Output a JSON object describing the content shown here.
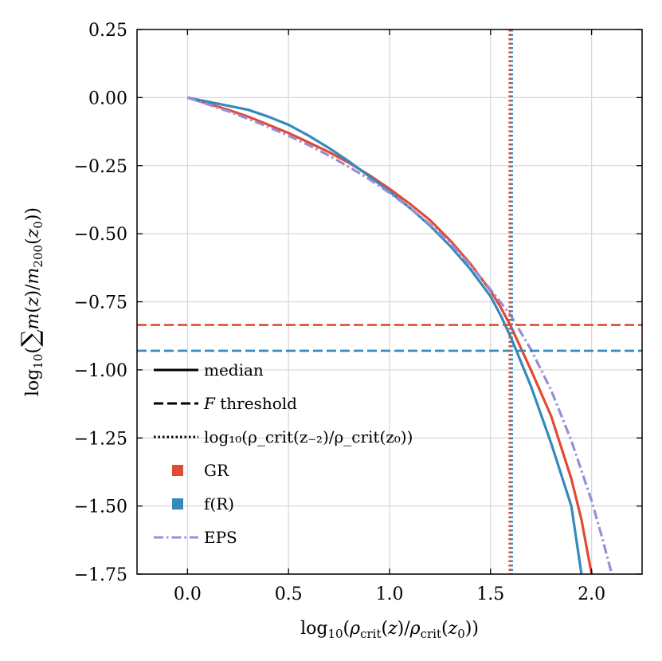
{
  "chart_data": {
    "type": "line",
    "xlabel": "log₁₀(ρ_crit(z)/ρ_crit(z₀))",
    "ylabel": "log₁₀(∑m(z)/m₂₀₀(z₀))",
    "xlim": [
      -0.25,
      2.25
    ],
    "ylim": [
      -1.75,
      0.25
    ],
    "xticks": [
      0.0,
      0.5,
      1.0,
      1.5,
      2.0
    ],
    "xtick_labels": [
      "0.0",
      "0.5",
      "1.0",
      "1.5",
      "2.0"
    ],
    "yticks": [
      0.25,
      0.0,
      -0.25,
      -0.5,
      -0.75,
      -1.0,
      -1.25,
      -1.5,
      -1.75
    ],
    "ytick_labels": [
      "0.25",
      "0.00",
      "−0.25",
      "−0.50",
      "−0.75",
      "−1.00",
      "−1.25",
      "−1.50",
      "−1.75"
    ],
    "grid": true,
    "legend_position": "lower-left",
    "colors": {
      "GR": "#e24a33",
      "fR": "#348abd",
      "EPS": "#988ed5"
    },
    "series": [
      {
        "name": "GR",
        "style": "solid",
        "x": [
          0.0,
          0.1,
          0.2,
          0.3,
          0.4,
          0.5,
          0.6,
          0.7,
          0.8,
          0.9,
          1.0,
          1.1,
          1.2,
          1.3,
          1.4,
          1.5,
          1.55,
          1.6,
          1.7,
          1.8,
          1.9,
          1.95,
          2.0
        ],
        "y": [
          0.0,
          -0.022,
          -0.045,
          -0.07,
          -0.1,
          -0.13,
          -0.165,
          -0.2,
          -0.24,
          -0.285,
          -0.335,
          -0.39,
          -0.45,
          -0.525,
          -0.61,
          -0.71,
          -0.77,
          -0.84,
          -1.0,
          -1.17,
          -1.4,
          -1.55,
          -1.75
        ]
      },
      {
        "name": "f(R)",
        "style": "solid",
        "x": [
          0.0,
          0.1,
          0.2,
          0.3,
          0.4,
          0.5,
          0.6,
          0.7,
          0.8,
          0.9,
          1.0,
          1.1,
          1.2,
          1.3,
          1.4,
          1.5,
          1.55,
          1.6,
          1.7,
          1.8,
          1.9,
          1.95
        ],
        "y": [
          0.0,
          -0.015,
          -0.03,
          -0.045,
          -0.07,
          -0.1,
          -0.14,
          -0.185,
          -0.235,
          -0.29,
          -0.345,
          -0.405,
          -0.47,
          -0.545,
          -0.63,
          -0.73,
          -0.8,
          -0.88,
          -1.06,
          -1.27,
          -1.5,
          -1.75
        ]
      },
      {
        "name": "EPS",
        "style": "dashdot",
        "x": [
          0.0,
          0.1,
          0.2,
          0.3,
          0.4,
          0.5,
          0.6,
          0.7,
          0.8,
          0.9,
          1.0,
          1.1,
          1.2,
          1.3,
          1.4,
          1.5,
          1.6,
          1.7,
          1.8,
          1.9,
          2.0,
          2.05,
          2.1
        ],
        "y": [
          0.0,
          -0.025,
          -0.05,
          -0.078,
          -0.108,
          -0.14,
          -0.175,
          -0.213,
          -0.255,
          -0.3,
          -0.35,
          -0.405,
          -0.465,
          -0.535,
          -0.615,
          -0.705,
          -0.8,
          -0.925,
          -1.075,
          -1.26,
          -1.48,
          -1.61,
          -1.75
        ]
      }
    ],
    "hlines": [
      {
        "series": "GR",
        "y": -0.835,
        "style": "dashed"
      },
      {
        "series": "fR",
        "y": -0.93,
        "style": "dashed"
      }
    ],
    "vlines": [
      {
        "series": "GR",
        "x": 1.595,
        "style": "dotted"
      },
      {
        "series": "fR",
        "x": 1.605,
        "style": "dotted"
      }
    ],
    "legend": [
      {
        "label": "median",
        "kind": "line",
        "style": "solid"
      },
      {
        "label": "threshold",
        "prefix": "F",
        "kind": "line",
        "style": "dashed"
      },
      {
        "label": "log₁₀(ρ_crit(z₋₂)/ρ_crit(z₀))",
        "kind": "line",
        "style": "dotted"
      },
      {
        "label": "GR",
        "kind": "square",
        "color": "#e24a33"
      },
      {
        "label": "f(R)",
        "kind": "square",
        "color": "#348abd"
      },
      {
        "label": "EPS",
        "kind": "line",
        "style": "dashdot",
        "color": "#988ed5"
      }
    ]
  }
}
